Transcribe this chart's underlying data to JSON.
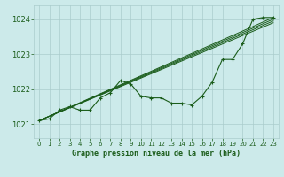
{
  "title": "Graphe pression niveau de la mer (hPa)",
  "bg_color": "#cceaea",
  "grid_color": "#aacccc",
  "line_color": "#1a5c1a",
  "xlim": [
    -0.5,
    23.5
  ],
  "ylim": [
    1020.6,
    1024.4
  ],
  "yticks": [
    1021,
    1022,
    1023,
    1024
  ],
  "xticks": [
    0,
    1,
    2,
    3,
    4,
    5,
    6,
    7,
    8,
    9,
    10,
    11,
    12,
    13,
    14,
    15,
    16,
    17,
    18,
    19,
    20,
    21,
    22,
    23
  ],
  "straight_lines": [
    [
      [
        0,
        23
      ],
      [
        1021.1,
        1024.05
      ]
    ],
    [
      [
        0,
        23
      ],
      [
        1021.1,
        1024.0
      ]
    ],
    [
      [
        0,
        23
      ],
      [
        1021.1,
        1023.95
      ]
    ],
    [
      [
        0,
        23
      ],
      [
        1021.1,
        1023.9
      ]
    ]
  ],
  "main_series_x": [
    0,
    1,
    2,
    3,
    4,
    5,
    6,
    7,
    8,
    9,
    10,
    11,
    12,
    13,
    14,
    15,
    16,
    17,
    18,
    19,
    20,
    21,
    22,
    23
  ],
  "main_series_y": [
    1021.1,
    1021.15,
    1021.4,
    1021.5,
    1021.4,
    1021.4,
    1021.75,
    1021.9,
    1022.25,
    1022.15,
    1021.8,
    1021.75,
    1021.75,
    1021.6,
    1021.6,
    1021.55,
    1021.8,
    1022.2,
    1022.85,
    1022.85,
    1023.3,
    1024.0,
    1024.05,
    1024.05
  ],
  "ytick_fontsize": 6,
  "xtick_fontsize": 5,
  "xlabel_fontsize": 6
}
